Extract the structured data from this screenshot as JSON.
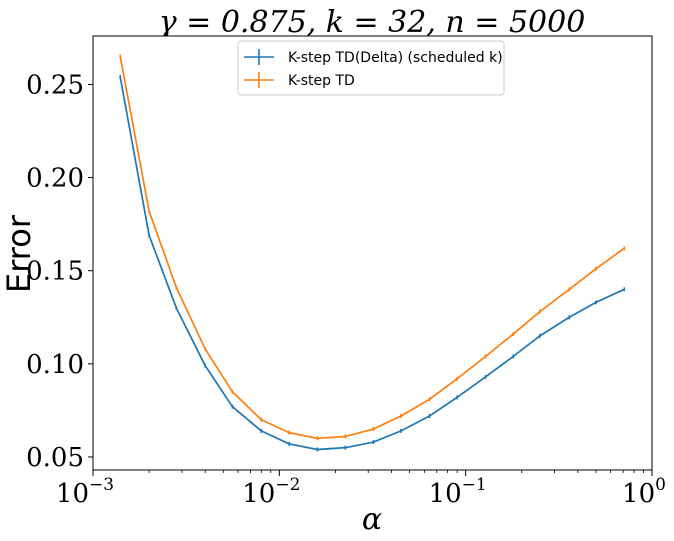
{
  "chart_data": {
    "type": "line",
    "title": "γ = 0.875, k = 32, n = 5000",
    "xlabel": "α",
    "ylabel": "Error",
    "xscale": "log",
    "xlim": [
      0.001,
      1
    ],
    "ylim": [
      0.043,
      0.276
    ],
    "x_ticks": [
      {
        "value": 0.001,
        "base": "10",
        "exp": "−3"
      },
      {
        "value": 0.01,
        "base": "10",
        "exp": "−2"
      },
      {
        "value": 0.1,
        "base": "10",
        "exp": "−1"
      },
      {
        "value": 1,
        "base": "10",
        "exp": "0"
      }
    ],
    "y_ticks": [
      {
        "value": 0.05,
        "label": "0.05"
      },
      {
        "value": 0.1,
        "label": "0.10"
      },
      {
        "value": 0.15,
        "label": "0.15"
      },
      {
        "value": 0.2,
        "label": "0.20"
      },
      {
        "value": 0.25,
        "label": "0.25"
      }
    ],
    "grid": false,
    "legend_position": "top-center",
    "x": [
      0.0014,
      0.002,
      0.0028,
      0.004,
      0.0056,
      0.008,
      0.0113,
      0.016,
      0.0226,
      0.032,
      0.045,
      0.064,
      0.09,
      0.128,
      0.18,
      0.25,
      0.36,
      0.5,
      0.71
    ],
    "series": [
      {
        "name": "K-step TD(Delta) (scheduled k)",
        "color": "#1f77b4",
        "values": [
          0.254,
          0.169,
          0.13,
          0.099,
          0.077,
          0.064,
          0.057,
          0.054,
          0.055,
          0.058,
          0.064,
          0.072,
          0.082,
          0.093,
          0.104,
          0.115,
          0.125,
          0.133,
          0.14
        ]
      },
      {
        "name": "K-step TD",
        "color": "#ff7f0e",
        "values": [
          0.265,
          0.182,
          0.141,
          0.108,
          0.085,
          0.07,
          0.063,
          0.06,
          0.061,
          0.065,
          0.072,
          0.081,
          0.092,
          0.104,
          0.116,
          0.128,
          0.14,
          0.151,
          0.162
        ]
      }
    ]
  }
}
